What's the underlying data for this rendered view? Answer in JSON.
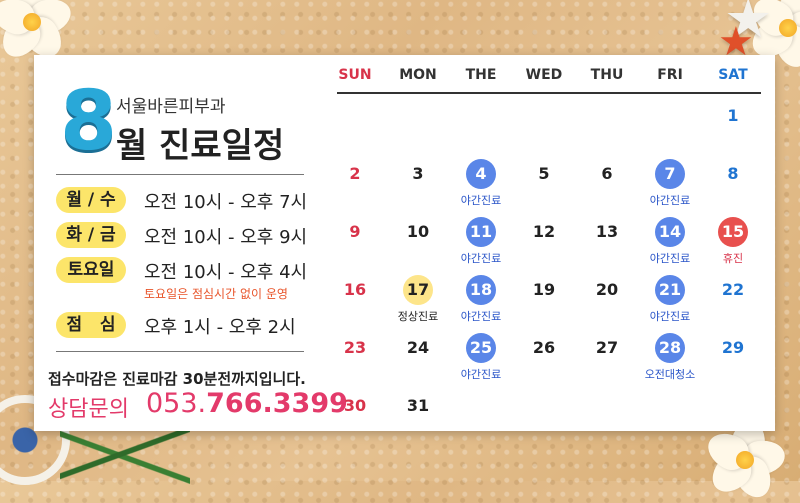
{
  "colors": {
    "accent_blue": "#5a86e8",
    "holiday_red": "#e8504e",
    "highlight_yellow": "#fce56a",
    "phone_pink": "#e33a6a"
  },
  "header": {
    "month_number": "8",
    "clinic_name": "서울바른피부과",
    "title": "월 진료일정"
  },
  "schedule": [
    {
      "days": "월 / 수",
      "hours": "오전 10시 - 오후 7시"
    },
    {
      "days": "화 / 금",
      "hours": "오전 10시 - 오후 9시"
    },
    {
      "days": "토요일",
      "hours": "오전 10시 - 오후 4시"
    },
    {
      "days": "점   심",
      "hours": "오후 1시 - 오후 2시"
    }
  ],
  "saturday_note": "토요일은 점심시간 없이 운영",
  "reception_note": "접수마감은 진료마감 30분전까지입니다.",
  "contact": {
    "label": "상담문의",
    "area": "053.",
    "number": "766.3399"
  },
  "calendar": {
    "weekdays": [
      "SUN",
      "MON",
      "THE",
      "WED",
      "THU",
      "FRI",
      "SAT"
    ],
    "weeks": [
      [
        null,
        null,
        null,
        null,
        null,
        null,
        {
          "d": "1"
        }
      ],
      [
        {
          "d": "2"
        },
        {
          "d": "3"
        },
        {
          "d": "4",
          "mark": "blue",
          "note": "야간진료"
        },
        {
          "d": "5"
        },
        {
          "d": "6"
        },
        {
          "d": "7",
          "mark": "blue",
          "note": "야간진료"
        },
        {
          "d": "8"
        }
      ],
      [
        {
          "d": "9"
        },
        {
          "d": "10"
        },
        {
          "d": "11",
          "mark": "blue",
          "note": "야간진료"
        },
        {
          "d": "12"
        },
        {
          "d": "13"
        },
        {
          "d": "14",
          "mark": "blue",
          "note": "야간진료"
        },
        {
          "d": "15",
          "mark": "red",
          "note": "휴진"
        }
      ],
      [
        {
          "d": "16"
        },
        {
          "d": "17",
          "mark": "yellow",
          "note": "정상진료"
        },
        {
          "d": "18",
          "mark": "blue",
          "note": "야간진료"
        },
        {
          "d": "19"
        },
        {
          "d": "20"
        },
        {
          "d": "21",
          "mark": "blue",
          "note": "야간진료"
        },
        {
          "d": "22"
        }
      ],
      [
        {
          "d": "23"
        },
        {
          "d": "24"
        },
        {
          "d": "25",
          "mark": "blue",
          "note": "야간진료"
        },
        {
          "d": "26"
        },
        {
          "d": "27"
        },
        {
          "d": "28",
          "mark": "blue",
          "note": "오전대청소"
        },
        {
          "d": "29"
        }
      ],
      [
        {
          "d": "30"
        },
        {
          "d": "31"
        },
        null,
        null,
        null,
        null,
        null
      ]
    ]
  }
}
